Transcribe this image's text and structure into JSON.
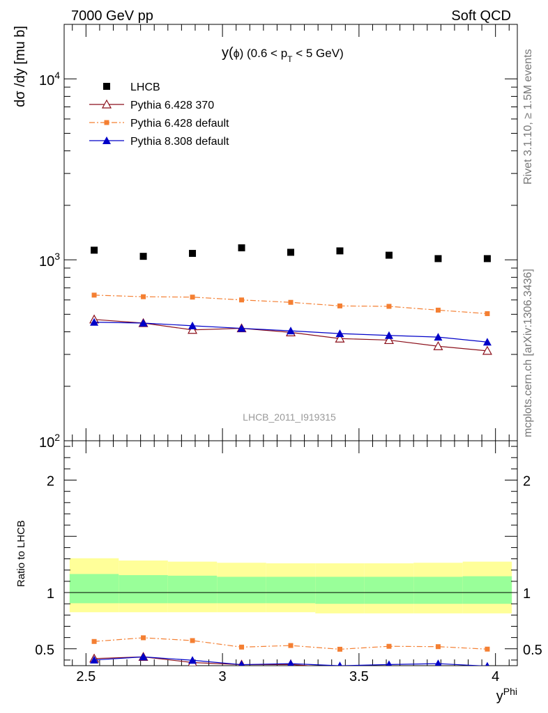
{
  "header": {
    "left": "7000 GeV pp",
    "right": "Soft QCD"
  },
  "side_labels": {
    "rivet": "Rivet 3.1.10, ≥ 1.5M events",
    "mcplots": "mcplots.cern.ch [arXiv:1306.3436]"
  },
  "plot_title": {
    "main": "y(",
    "phi": "ϕ",
    "cut": ") (0.6 < p",
    "sub": "T",
    "tail": " < 5 GeV)"
  },
  "watermark": "LHCB_2011_I919315",
  "colors": {
    "data": "#000000",
    "pythia6_370": "#8b0f1a",
    "pythia6_default": "#f47f32",
    "pythia8_default": "#0000c8",
    "band_inner": "#99ff99",
    "band_outer": "#ffff99"
  },
  "chart_data": [
    {
      "type": "scatter",
      "panel": "main",
      "ylabel": "dσ /dy [mu b]",
      "yscale": "log",
      "ylim": [
        100,
        20000
      ],
      "xlim": [
        2.42,
        4.08
      ],
      "yticks": [
        {
          "value": 100,
          "base": "10",
          "exp": "2"
        },
        {
          "value": 1000,
          "base": "10",
          "exp": "3"
        },
        {
          "value": 10000,
          "base": "10",
          "exp": "4"
        }
      ],
      "legend_position": "top-left",
      "x": [
        2.53,
        2.71,
        2.89,
        3.07,
        3.25,
        3.43,
        3.61,
        3.79,
        3.97
      ],
      "series": [
        {
          "name": "LHCB",
          "style": "data",
          "marker": "square",
          "values": [
            1130,
            1045,
            1085,
            1165,
            1100,
            1120,
            1060,
            1015,
            1015
          ]
        },
        {
          "name": "Pythia 6.428 370",
          "style": "solid",
          "marker": "open-triangle",
          "values": [
            468,
            447,
            410,
            418,
            397,
            367,
            360,
            333,
            314
          ]
        },
        {
          "name": "Pythia 6.428 default",
          "style": "dashdot",
          "marker": "small-square",
          "values": [
            638,
            625,
            622,
            600,
            582,
            556,
            553,
            527,
            504
          ]
        },
        {
          "name": "Pythia 8.308 default",
          "style": "solid",
          "marker": "filled-triangle",
          "values": [
            452,
            447,
            432,
            418,
            405,
            391,
            382,
            374,
            351
          ]
        }
      ]
    },
    {
      "type": "line",
      "panel": "ratio",
      "ylabel": "Ratio to LHCB",
      "xlabel_main": "y",
      "xlabel_sup": "Phi",
      "ylim": [
        0.35,
        2.35
      ],
      "xlim": [
        2.42,
        4.08
      ],
      "yticks": [
        0.5,
        1,
        2
      ],
      "ytick_labels": [
        "0.5",
        "1",
        "2"
      ],
      "xticks": [
        2.5,
        3,
        3.5,
        4
      ],
      "xtick_labels": [
        "2.5",
        "3",
        "3.5",
        "4"
      ],
      "x": [
        2.53,
        2.71,
        2.89,
        3.07,
        3.25,
        3.43,
        3.61,
        3.79,
        3.97
      ],
      "bin_edges": [
        2.44,
        2.62,
        2.8,
        2.98,
        3.16,
        3.34,
        3.52,
        3.7,
        3.88,
        4.06
      ],
      "band_inner": [
        [
          0.905,
          1.165
        ],
        [
          0.905,
          1.155
        ],
        [
          0.905,
          1.15
        ],
        [
          0.905,
          1.14
        ],
        [
          0.905,
          1.14
        ],
        [
          0.9,
          1.14
        ],
        [
          0.9,
          1.14
        ],
        [
          0.9,
          1.14
        ],
        [
          0.9,
          1.145
        ]
      ],
      "band_outer": [
        [
          0.825,
          1.305
        ],
        [
          0.825,
          1.285
        ],
        [
          0.825,
          1.275
        ],
        [
          0.825,
          1.265
        ],
        [
          0.825,
          1.26
        ],
        [
          0.815,
          1.26
        ],
        [
          0.815,
          1.26
        ],
        [
          0.815,
          1.265
        ],
        [
          0.815,
          1.275
        ]
      ],
      "series": [
        {
          "name": "Pythia 6.428 370",
          "values": [
            0.413,
            0.428,
            0.378,
            0.359,
            0.361,
            0.328,
            0.34,
            0.328,
            0.309
          ]
        },
        {
          "name": "Pythia 6.428 default",
          "values": [
            0.565,
            0.598,
            0.573,
            0.515,
            0.529,
            0.496,
            0.522,
            0.519,
            0.497
          ]
        },
        {
          "name": "Pythia 8.308 default",
          "values": [
            0.4,
            0.428,
            0.398,
            0.359,
            0.368,
            0.349,
            0.36,
            0.368,
            0.346
          ]
        }
      ]
    }
  ]
}
